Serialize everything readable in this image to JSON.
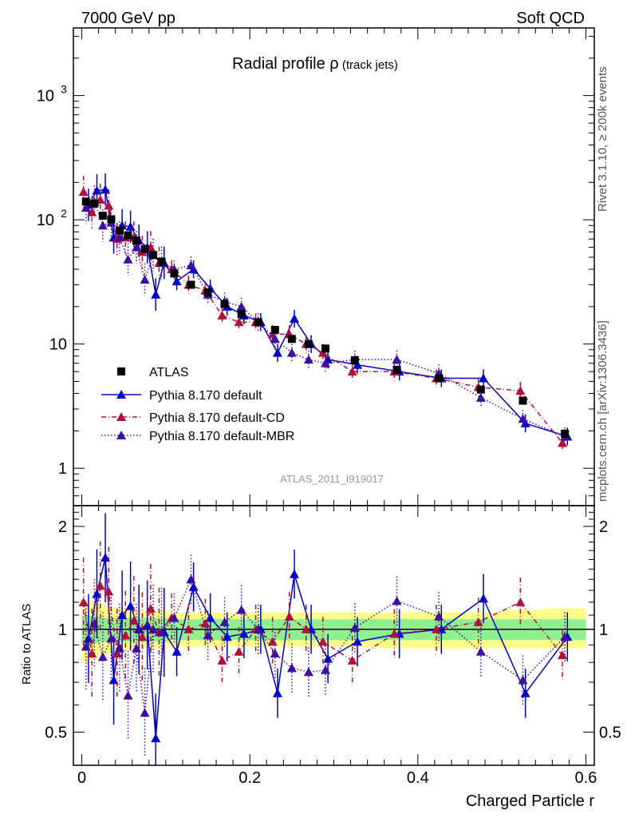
{
  "header": {
    "left": "7000 GeV pp",
    "right": "Soft QCD"
  },
  "side_labels": {
    "rivet": "Rivet 3.1.10, ≥ 200k events",
    "mcplots": "mcplots.cern.ch [arXiv:1306.3436]"
  },
  "plot_title": {
    "main": "Radial profile ",
    "symbol": "ρ",
    "sub": " (track jets)"
  },
  "paper_id": "ATLAS_2011_I919017",
  "legend": {
    "atlas": "ATLAS",
    "default": "Pythia 8.170 default",
    "cd": "Pythia 8.170 default-CD",
    "mbr": "Pythia 8.170 default-MBR"
  },
  "chart_data": {
    "type": "scatter",
    "title": "Radial profile ρ (track jets)",
    "xlabel": "Charged Particle r",
    "ylabel": "",
    "ratio_ylabel": "Ratio to ATLAS",
    "ylim": [
      0.5,
      3500
    ],
    "yscale": "log",
    "ratio_ylim": [
      0.4,
      2.3
    ],
    "ratio_yscale": "log",
    "xlim": [
      -0.01,
      0.61
    ],
    "x_ticks": [
      "0",
      "0.2",
      "0.4",
      "0.6"
    ],
    "y_ticks_main": [
      {
        "value": 1,
        "label": "1"
      },
      {
        "value": 10,
        "label": "10"
      }
    ],
    "y_ticks_main_pow": [
      {
        "value": 100,
        "base": "10",
        "exp": "2"
      },
      {
        "value": 1000,
        "base": "10",
        "exp": "3"
      }
    ],
    "y_ticks_ratio": [
      {
        "value": 0.5,
        "label": "0.5"
      },
      {
        "value": 1,
        "label": "1"
      },
      {
        "value": 2,
        "label": "2"
      }
    ],
    "colors": {
      "atlas": "#000000",
      "default": "#0000cc",
      "cd": "#b2103a",
      "mbr": "#3f0e9e",
      "band_inner": "#90f090",
      "band_outer": "#ffff88"
    },
    "x": [
      0.005,
      0.015,
      0.025,
      0.035,
      0.045,
      0.055,
      0.065,
      0.075,
      0.085,
      0.095,
      0.11,
      0.13,
      0.15,
      0.17,
      0.19,
      0.21,
      0.23,
      0.25,
      0.27,
      0.29,
      0.325,
      0.375,
      0.425,
      0.475,
      0.525,
      0.575
    ],
    "series": [
      {
        "name": "ATLAS",
        "style": "square",
        "values": [
          140,
          135,
          108,
          101,
          82,
          75,
          68,
          58,
          52,
          46,
          37,
          30,
          26,
          21,
          17.5,
          15,
          13,
          11,
          10,
          9.2,
          7.4,
          6.2,
          5.3,
          4.3,
          3.5,
          1.9
        ]
      },
      {
        "name": "Pythia 8.170 default",
        "style": "solid",
        "values": [
          132,
          172,
          175,
          72,
          90,
          88,
          68,
          60,
          25,
          45,
          32,
          40,
          28,
          20,
          17,
          15,
          8.5,
          16,
          10,
          7.5,
          6.8,
          6.0,
          5.3,
          5.3,
          2.3,
          1.8
        ]
      },
      {
        "name": "Pythia 8.170 default-CD",
        "style": "dashdot",
        "values": [
          168,
          115,
          145,
          130,
          70,
          72,
          72,
          55,
          60,
          45,
          40,
          30,
          27,
          17,
          15,
          15,
          12,
          12,
          10,
          8.5,
          6.0,
          6.0,
          5.3,
          4.5,
          4.2,
          1.6
        ]
      },
      {
        "name": "Pythia 8.170 default-MBR",
        "style": "dotted",
        "values": [
          125,
          140,
          90,
          95,
          72,
          48,
          60,
          33,
          52,
          45,
          40,
          43,
          25,
          22,
          20,
          15,
          11,
          8.5,
          7.5,
          7.0,
          7.5,
          7.5,
          5.8,
          3.7,
          2.5,
          1.8
        ]
      }
    ],
    "ratio_series": [
      {
        "name": "Pythia 8.170 default",
        "values": [
          0.94,
          1.27,
          1.62,
          0.71,
          1.1,
          1.17,
          1.0,
          1.03,
          0.48,
          0.98,
          0.86,
          1.33,
          1.08,
          0.95,
          0.97,
          1.0,
          0.65,
          1.45,
          1.0,
          0.82,
          0.92,
          0.97,
          1.0,
          1.23,
          0.65,
          0.95
        ]
      },
      {
        "name": "Pythia 8.170 default-CD",
        "values": [
          1.2,
          0.85,
          1.34,
          1.29,
          0.85,
          0.96,
          1.06,
          0.95,
          1.15,
          0.98,
          1.08,
          1.0,
          1.04,
          0.81,
          0.86,
          1.0,
          0.92,
          1.09,
          1.0,
          0.92,
          0.81,
          0.97,
          1.0,
          1.05,
          1.2,
          0.84
        ]
      },
      {
        "name": "Pythia 8.170 default-MBR",
        "values": [
          0.89,
          1.04,
          0.83,
          0.94,
          0.88,
          0.64,
          0.88,
          0.57,
          1.0,
          0.98,
          1.08,
          1.4,
          0.96,
          1.05,
          1.14,
          1.0,
          0.85,
          0.77,
          0.75,
          0.76,
          1.01,
          1.21,
          1.09,
          0.86,
          0.71,
          0.95
        ]
      }
    ],
    "ratio_band": {
      "inner_upper": [
        1.1,
        1.09,
        1.08,
        1.08,
        1.08,
        1.08,
        1.08,
        1.08,
        1.08,
        1.08,
        1.07,
        1.07,
        1.07,
        1.07,
        1.07,
        1.07,
        1.07,
        1.07,
        1.07,
        1.07,
        1.07,
        1.07,
        1.07,
        1.07,
        1.07,
        1.07
      ],
      "inner_lower": [
        0.9,
        0.91,
        0.92,
        0.92,
        0.92,
        0.92,
        0.92,
        0.92,
        0.92,
        0.92,
        0.93,
        0.93,
        0.93,
        0.93,
        0.93,
        0.93,
        0.93,
        0.93,
        0.93,
        0.93,
        0.93,
        0.93,
        0.93,
        0.93,
        0.93,
        0.93
      ],
      "outer_upper": [
        1.22,
        1.2,
        1.18,
        1.16,
        1.15,
        1.14,
        1.13,
        1.13,
        1.13,
        1.13,
        1.12,
        1.12,
        1.12,
        1.12,
        1.12,
        1.12,
        1.12,
        1.12,
        1.12,
        1.12,
        1.12,
        1.12,
        1.12,
        1.12,
        1.14,
        1.15
      ],
      "outer_lower": [
        0.8,
        0.82,
        0.84,
        0.85,
        0.86,
        0.87,
        0.88,
        0.88,
        0.88,
        0.88,
        0.89,
        0.89,
        0.89,
        0.89,
        0.89,
        0.89,
        0.89,
        0.89,
        0.89,
        0.89,
        0.89,
        0.88,
        0.88,
        0.88,
        0.88,
        0.88
      ]
    }
  }
}
